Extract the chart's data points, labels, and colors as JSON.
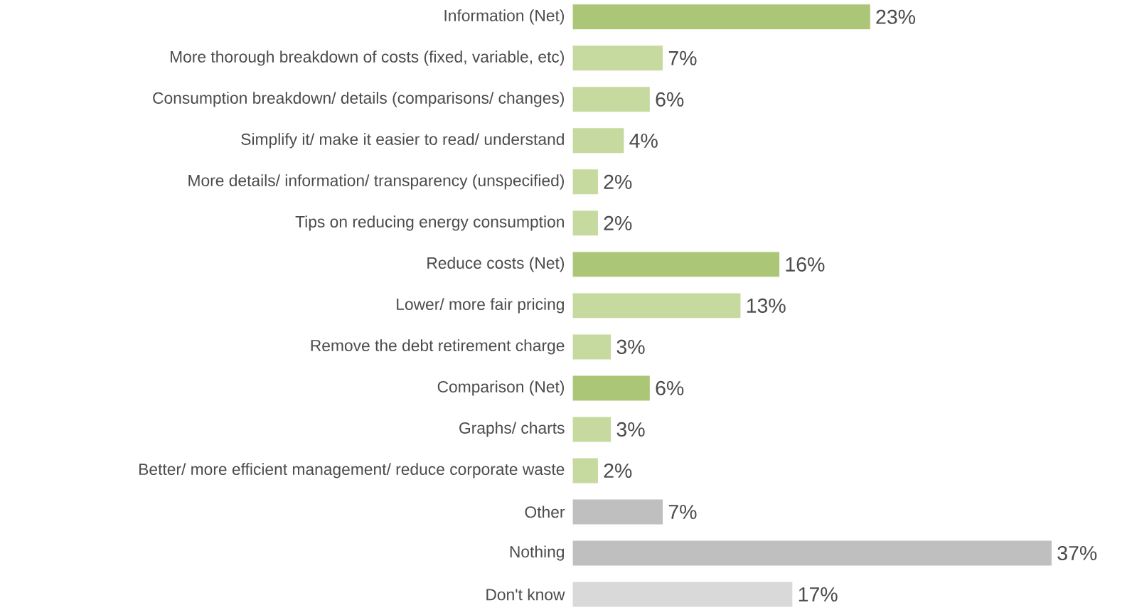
{
  "chart_data": {
    "type": "bar",
    "orientation": "horizontal",
    "categories": [
      "Information (Net)",
      "More thorough breakdown of costs (fixed, variable, etc)",
      "Consumption breakdown/ details (comparisons/ changes)",
      "Simplify it/ make it easier to read/ understand",
      "More details/ information/ transparency (unspecified)",
      "Tips on reducing energy consumption",
      "Reduce costs (Net)",
      "Lower/ more fair pricing",
      "Remove the debt retirement charge",
      "Comparison (Net)",
      "Graphs/ charts",
      "Better/ more efficient management/ reduce corporate waste",
      "Other",
      "Nothing",
      "Don't know"
    ],
    "values": [
      23,
      7,
      6,
      4,
      2,
      2,
      16,
      13,
      3,
      6,
      3,
      2,
      7,
      37,
      17
    ],
    "colors": [
      "#abc676",
      "#c6d99e",
      "#c6d99e",
      "#c6d99e",
      "#c6d99e",
      "#c6d99e",
      "#abc676",
      "#c6d99e",
      "#c6d99e",
      "#abc676",
      "#c6d99e",
      "#c6d99e",
      "#bfbfbf",
      "#bfbfbf",
      "#d9d9d9"
    ],
    "value_labels": [
      "23%",
      "7%",
      "6%",
      "4%",
      "2%",
      "2%",
      "16%",
      "13%",
      "3%",
      "6%",
      "3%",
      "2%",
      "7%",
      "37%",
      "17%"
    ]
  }
}
